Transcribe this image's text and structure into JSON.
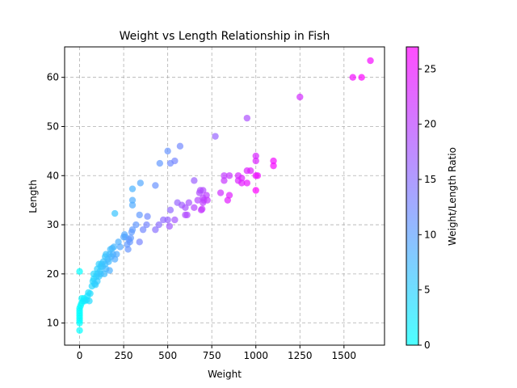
{
  "chart_data": {
    "type": "scatter",
    "title": "Weight vs Length Relationship in Fish",
    "xlabel": "Weight",
    "ylabel": "Length",
    "colorbar_label": "Weight/Length Ratio",
    "colormap": "cool",
    "xlim": [
      -85,
      1730
    ],
    "ylim": [
      5.5,
      66.2
    ],
    "clim": [
      0,
      27
    ],
    "xticks": [
      0,
      250,
      500,
      750,
      1000,
      1250,
      1500
    ],
    "yticks": [
      10,
      20,
      30,
      40,
      50,
      60
    ],
    "cticks": [
      0,
      5,
      10,
      15,
      20,
      25
    ],
    "grid": true,
    "colors": {
      "low": "#00ffff",
      "high": "#ff00ff",
      "grid": "#b0b0b0"
    },
    "points": [
      [
        0,
        8.5
      ],
      [
        0,
        10
      ],
      [
        0,
        10.5
      ],
      [
        0,
        11
      ],
      [
        0,
        11.5
      ],
      [
        0,
        12
      ],
      [
        0,
        12.5
      ],
      [
        0,
        13
      ],
      [
        0,
        20.5
      ],
      [
        5,
        13.5
      ],
      [
        10,
        14
      ],
      [
        12,
        15
      ],
      [
        20,
        14.5
      ],
      [
        25,
        15
      ],
      [
        30,
        14.5
      ],
      [
        40,
        14.7
      ],
      [
        45,
        15.5
      ],
      [
        50,
        16.2
      ],
      [
        55,
        14.5
      ],
      [
        60,
        16
      ],
      [
        70,
        17.5
      ],
      [
        75,
        18.5
      ],
      [
        80,
        19
      ],
      [
        80,
        20
      ],
      [
        85,
        18
      ],
      [
        90,
        17.8
      ],
      [
        95,
        19.5
      ],
      [
        100,
        18.5
      ],
      [
        100,
        20
      ],
      [
        100,
        21
      ],
      [
        110,
        19.5
      ],
      [
        110,
        22
      ],
      [
        115,
        20.5
      ],
      [
        120,
        20
      ],
      [
        120,
        21.5
      ],
      [
        125,
        22
      ],
      [
        130,
        21.5
      ],
      [
        135,
        22.5
      ],
      [
        140,
        20
      ],
      [
        145,
        22
      ],
      [
        145,
        23.5
      ],
      [
        150,
        21
      ],
      [
        150,
        24
      ],
      [
        160,
        23
      ],
      [
        165,
        22.5
      ],
      [
        170,
        20.7
      ],
      [
        170,
        24
      ],
      [
        175,
        25
      ],
      [
        180,
        23.5
      ],
      [
        185,
        25.2
      ],
      [
        190,
        24
      ],
      [
        195,
        25.5
      ],
      [
        200,
        23
      ],
      [
        200,
        32.3
      ],
      [
        210,
        24
      ],
      [
        220,
        26.5
      ],
      [
        230,
        25.5
      ],
      [
        250,
        27.5
      ],
      [
        255,
        28
      ],
      [
        260,
        27.5
      ],
      [
        270,
        26
      ],
      [
        275,
        25
      ],
      [
        280,
        27
      ],
      [
        285,
        26.5
      ],
      [
        290,
        27.3
      ],
      [
        295,
        28.5
      ],
      [
        300,
        29
      ],
      [
        300,
        34
      ],
      [
        300,
        35
      ],
      [
        300,
        37.3
      ],
      [
        320,
        30
      ],
      [
        340,
        26.5
      ],
      [
        340,
        32
      ],
      [
        345,
        38.5
      ],
      [
        360,
        29
      ],
      [
        380,
        30
      ],
      [
        385,
        31.7
      ],
      [
        430,
        38
      ],
      [
        430,
        29
      ],
      [
        450,
        30
      ],
      [
        455,
        42.5
      ],
      [
        475,
        31
      ],
      [
        500,
        31
      ],
      [
        500,
        45
      ],
      [
        510,
        29.7
      ],
      [
        515,
        33
      ],
      [
        515,
        42.5
      ],
      [
        540,
        31
      ],
      [
        540,
        43
      ],
      [
        555,
        34.5
      ],
      [
        570,
        46
      ],
      [
        580,
        34
      ],
      [
        600,
        32
      ],
      [
        600,
        33.5
      ],
      [
        610,
        32
      ],
      [
        620,
        34.5
      ],
      [
        650,
        33.5
      ],
      [
        650,
        39
      ],
      [
        670,
        35
      ],
      [
        680,
        36.5
      ],
      [
        685,
        37
      ],
      [
        690,
        33
      ],
      [
        695,
        33.2
      ],
      [
        700,
        34.5
      ],
      [
        700,
        35.5
      ],
      [
        700,
        37
      ],
      [
        705,
        35
      ],
      [
        720,
        36
      ],
      [
        725,
        35
      ],
      [
        770,
        48
      ],
      [
        800,
        36.5
      ],
      [
        820,
        39
      ],
      [
        820,
        40
      ],
      [
        840,
        35
      ],
      [
        850,
        40
      ],
      [
        850,
        36
      ],
      [
        900,
        39
      ],
      [
        900,
        40
      ],
      [
        920,
        38.5
      ],
      [
        920,
        39.5
      ],
      [
        950,
        41
      ],
      [
        950,
        38.5
      ],
      [
        950,
        51.7
      ],
      [
        970,
        41
      ],
      [
        1000,
        44
      ],
      [
        1000,
        43
      ],
      [
        1000,
        40
      ],
      [
        1000,
        37
      ],
      [
        1010,
        40
      ],
      [
        1100,
        42
      ],
      [
        1100,
        43
      ],
      [
        1250,
        56
      ],
      [
        1550,
        60
      ],
      [
        1600,
        60
      ],
      [
        1650,
        63.4
      ]
    ]
  }
}
